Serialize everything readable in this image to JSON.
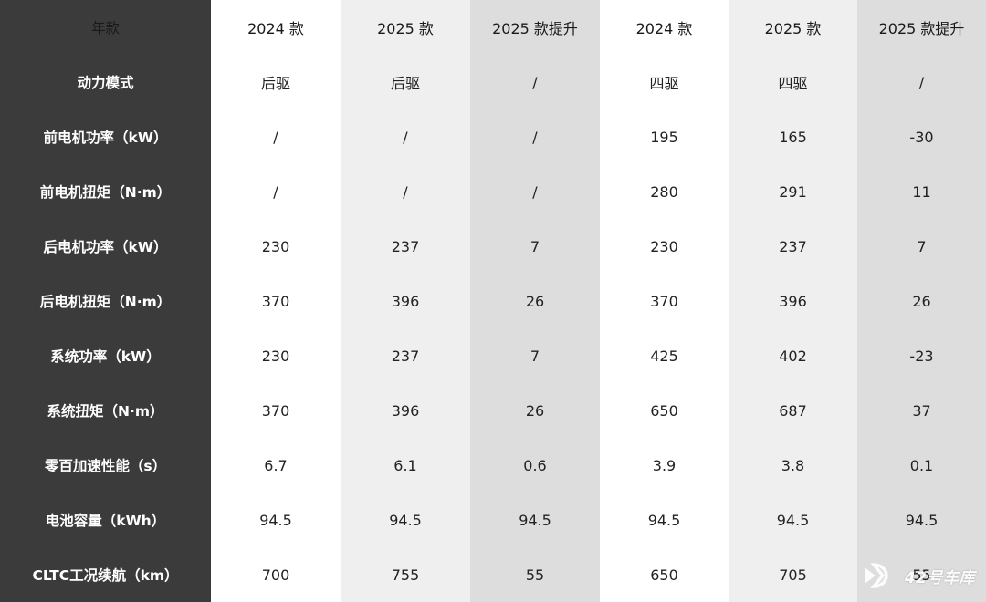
{
  "table": {
    "header_label": "年款",
    "columns": [
      "2024 款",
      "2025 款",
      "2025 款提升",
      "2024 款",
      "2025 款",
      "2025 款提升"
    ],
    "rows": [
      {
        "label": "动力模式",
        "values": [
          "后驱",
          "后驱",
          "/",
          "四驱",
          "四驱",
          "/"
        ]
      },
      {
        "label": "前电机功率（kW）",
        "values": [
          "/",
          "/",
          "/",
          "195",
          "165",
          "-30"
        ]
      },
      {
        "label": "前电机扭矩（N·m）",
        "values": [
          "/",
          "/",
          "/",
          "280",
          "291",
          "11"
        ]
      },
      {
        "label": "后电机功率（kW）",
        "values": [
          "230",
          "237",
          "7",
          "230",
          "237",
          "7"
        ]
      },
      {
        "label": "后电机扭矩（N·m）",
        "values": [
          "370",
          "396",
          "26",
          "370",
          "396",
          "26"
        ]
      },
      {
        "label": "系统功率（kW）",
        "values": [
          "230",
          "237",
          "7",
          "425",
          "402",
          "-23"
        ]
      },
      {
        "label": "系统扭矩（N·m）",
        "values": [
          "370",
          "396",
          "26",
          "650",
          "687",
          "37"
        ]
      },
      {
        "label": "零百加速性能（s）",
        "values": [
          "6.7",
          "6.1",
          "0.6",
          "3.9",
          "3.8",
          "0.1"
        ]
      },
      {
        "label": "电池容量（kWh）",
        "values": [
          "94.5",
          "94.5",
          "94.5",
          "94.5",
          "94.5",
          "94.5"
        ]
      },
      {
        "label": "CLTC工况续航（km）",
        "values": [
          "700",
          "755",
          "55",
          "650",
          "705",
          "55"
        ]
      }
    ]
  },
  "watermark": {
    "text": "42号车库",
    "icon": "play-arrows-logo-icon"
  },
  "colors": {
    "label_column": "#3b3b3b",
    "col_white": "#ffffff",
    "col_light": "#efefef",
    "col_mid": "#dddddd"
  }
}
